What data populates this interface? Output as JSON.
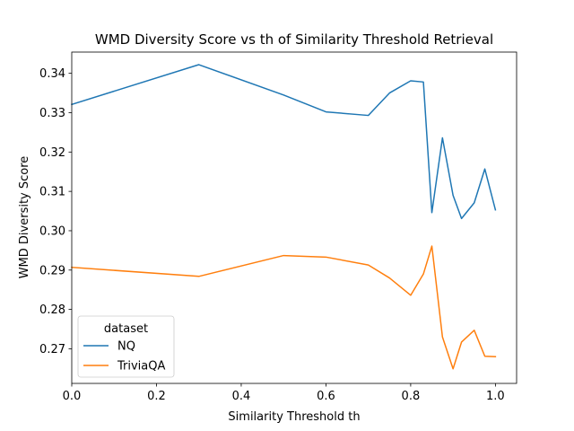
{
  "chart_data": {
    "type": "line",
    "title": "WMD Diversity Score vs th of Similarity Threshold Retrieval",
    "xlabel": "Similarity Threshold th",
    "ylabel": "WMD Diversity Score",
    "xlim": [
      0.0,
      1.05
    ],
    "ylim": [
      0.2612,
      0.3454
    ],
    "xticks": [
      0.0,
      0.2,
      0.4,
      0.6,
      0.8,
      1.0
    ],
    "xtick_labels": [
      "0.0",
      "0.2",
      "0.4",
      "0.6",
      "0.8",
      "1.0"
    ],
    "yticks": [
      0.27,
      0.28,
      0.29,
      0.3,
      0.31,
      0.32,
      0.33,
      0.34
    ],
    "ytick_labels": [
      "0.27",
      "0.28",
      "0.29",
      "0.30",
      "0.31",
      "0.32",
      "0.33",
      "0.34"
    ],
    "grid": false,
    "legend": {
      "title": "dataset",
      "placement": "lower-left"
    },
    "series": [
      {
        "name": "NQ",
        "color": "#1f77b4",
        "x": [
          0.0,
          0.3,
          0.5,
          0.6,
          0.7,
          0.75,
          0.8,
          0.83,
          0.85,
          0.875,
          0.9,
          0.92,
          0.95,
          0.975,
          1.0
        ],
        "y": [
          0.3321,
          0.3422,
          0.3345,
          0.3302,
          0.3293,
          0.335,
          0.3381,
          0.3378,
          0.3046,
          0.3236,
          0.309,
          0.3031,
          0.3071,
          0.3157,
          0.3053
        ]
      },
      {
        "name": "TriviaQA",
        "color": "#ff7f0e",
        "x": [
          0.0,
          0.3,
          0.5,
          0.6,
          0.7,
          0.75,
          0.8,
          0.83,
          0.85,
          0.875,
          0.9,
          0.92,
          0.95,
          0.975,
          1.0
        ],
        "y": [
          0.2907,
          0.2884,
          0.2937,
          0.2933,
          0.2913,
          0.288,
          0.2836,
          0.289,
          0.2961,
          0.273,
          0.2649,
          0.2717,
          0.2747,
          0.2681,
          0.268
        ]
      }
    ]
  }
}
